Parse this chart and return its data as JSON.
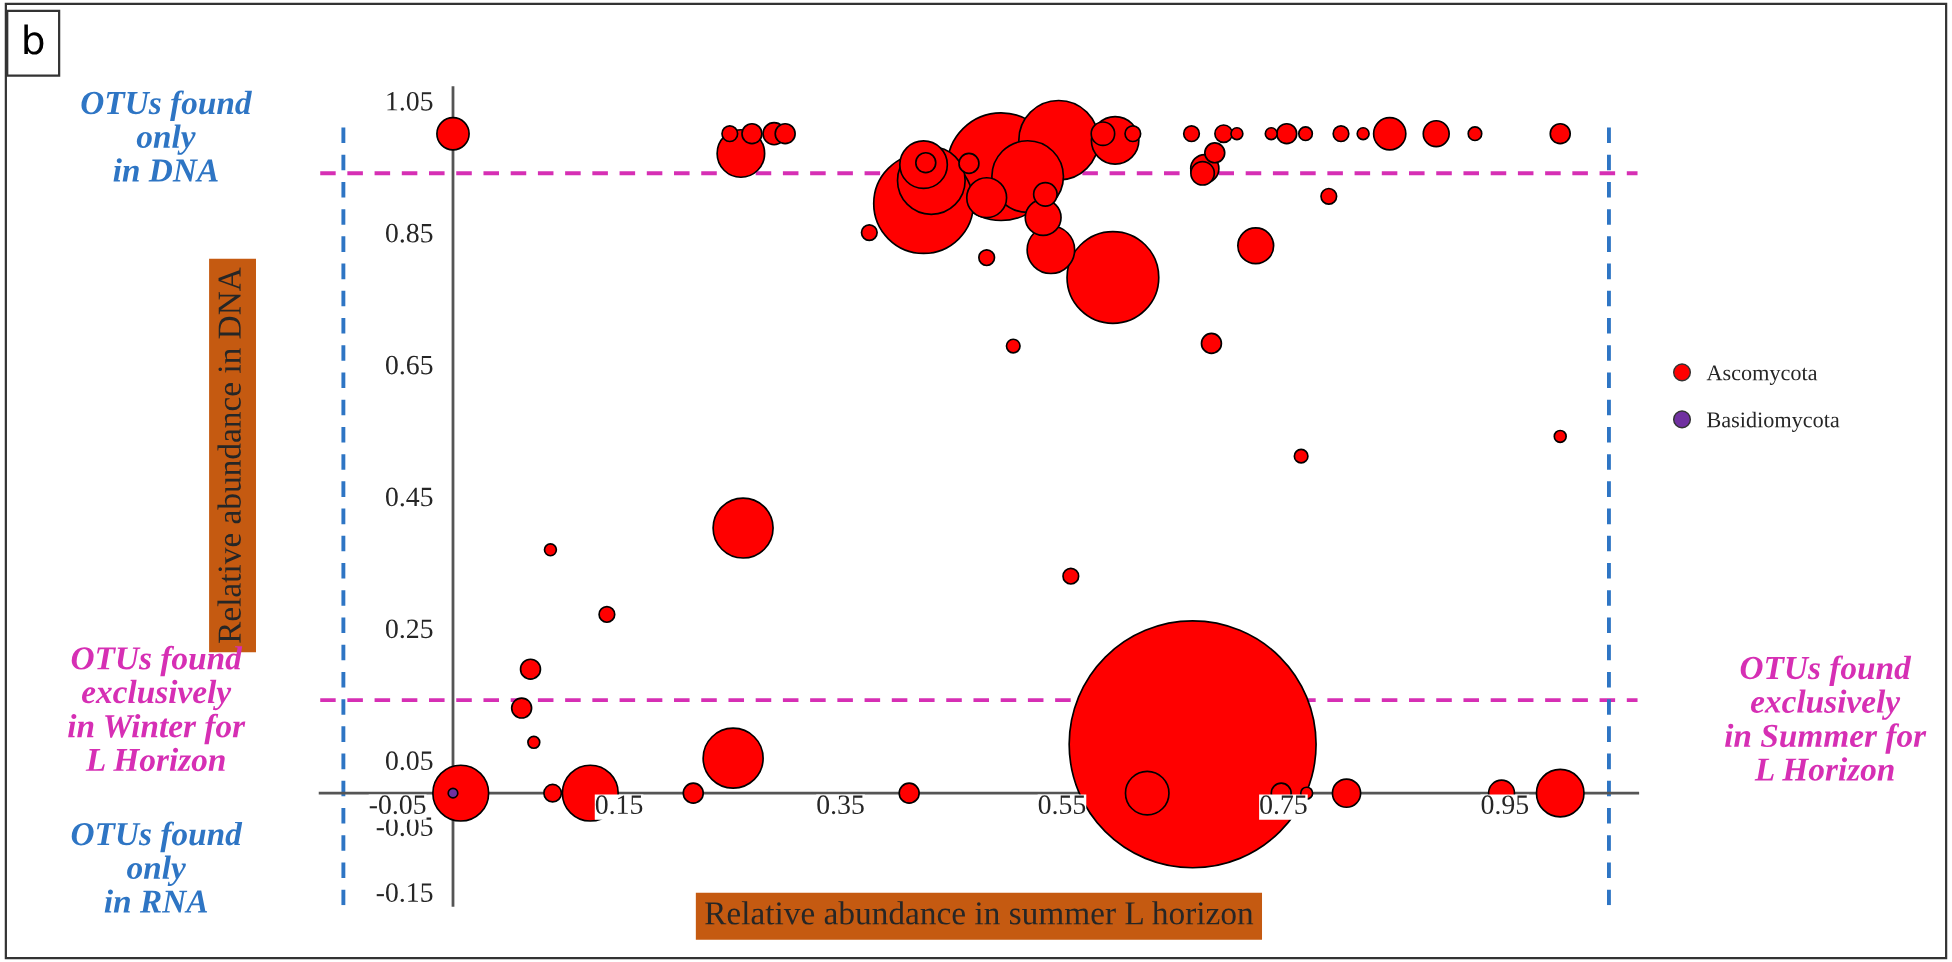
{
  "chart_data": {
    "type": "bubble",
    "xlabel": "Relative abundance in summer L horizon",
    "ylabel": "Relative abundance in DNA",
    "annotations": [
      "b",
      "OTUs found\nonly\nin DNA",
      "OTUs found\nexclusively\nin Winter for\nL Horizon",
      "OTUs found\nonly\nin RNA",
      "OTUs found\nexclusively\nin Summer for\nL Horizon"
    ],
    "xlim": [
      -0.12,
      1.07
    ],
    "ylim": [
      -0.17,
      1.07
    ],
    "xticks": [
      -0.05,
      0.15,
      0.35,
      0.55,
      0.75,
      0.95
    ],
    "yticks": [
      -0.15,
      -0.05,
      0.05,
      0.25,
      0.45,
      0.65,
      0.85,
      1.05
    ],
    "grid": false,
    "legend": "right",
    "marker": "circle",
    "ref_lines": [
      {
        "axis": "y",
        "value": 0.94,
        "color": "#d62fb4",
        "line_style": "dashed"
      },
      {
        "axis": "y",
        "value": 0.141,
        "color": "#d62fb4",
        "line_style": "dashed"
      },
      {
        "axis": "x",
        "value": -0.099,
        "color": "#2e75c4",
        "line_style": "dashed"
      },
      {
        "axis": "x",
        "value": 1.044,
        "color": "#2e75c4",
        "line_style": "dashed"
      }
    ],
    "series": [
      {
        "name": "Ascomycota",
        "color": "#ff0000",
        "x": [
          0.668,
          0.495,
          0.425,
          0.596,
          0.547,
          0.519,
          0.432,
          0.262,
          0.253,
          0.007,
          0.124,
          0.425,
          0.26,
          0.598,
          1.0,
          0.627,
          0.482,
          0.54,
          0.533,
          0.725,
          0.846,
          0.0,
          0.807,
          0.679,
          0.888,
          0.947,
          0.587,
          0.535,
          0.677,
          0.29,
          0.27,
          0.3,
          0.466,
          0.427,
          0.688,
          0.07,
          0.062,
          0.412,
          0.217,
          0.748,
          0.753,
          0.685,
          1.0,
          0.696,
          0.09,
          0.25,
          0.614,
          0.667,
          0.802,
          0.376,
          0.482,
          0.791,
          0.558,
          0.139,
          0.923,
          0.506,
          0.766,
          0.77,
          0.073,
          0.088,
          1.0,
          0.708,
          0.739,
          0.822,
          0.771
        ],
        "values": [
          0.074,
          0.95,
          0.894,
          0.782,
          0.99,
          0.935,
          0.929,
          0.402,
          0.053,
          0,
          0,
          0.953,
          0.97,
          0.99,
          0,
          0,
          0.903,
          0.824,
          0.873,
          0.83,
          1.0,
          1.0,
          0,
          0.947,
          1.0,
          0,
          1.0,
          0.908,
          0.94,
          1.0,
          1.0,
          1.0,
          0.955,
          0.956,
          0.971,
          0.188,
          0.129,
          0,
          0,
          0,
          1.0,
          0.682,
          1.0,
          1.0,
          0,
          1.0,
          1.0,
          1.0,
          1.0,
          0.85,
          0.812,
          0.905,
          0.329,
          0.271,
          1.0,
          0.678,
          0.511,
          1.0,
          0.077,
          0.369,
          0.541,
          1.0,
          1.0,
          1.0,
          0
        ],
        "sizes": [
          1,
          0.19,
          0.163,
          0.138,
          0.104,
          0.084,
          0.075,
          0.059,
          0.059,
          0.051,
          0.051,
          0.037,
          0.037,
          0.037,
          0.037,
          0.031,
          0.026,
          0.037,
          0.021,
          0.021,
          0.017,
          0.017,
          0.013,
          0.013,
          0.011,
          0.011,
          0.009,
          0.009,
          0.009,
          0.008,
          0.0065,
          0.0065,
          0.0065,
          0.0065,
          0.0065,
          0.0065,
          0.0065,
          0.0065,
          0.0065,
          0.0065,
          0.0065,
          0.0065,
          0.0065,
          0.005,
          0.005,
          0.004,
          0.004,
          0.004,
          0.004,
          0.004,
          0.004,
          0.004,
          0.004,
          0.004,
          0.003,
          0.003,
          0.003,
          0.003,
          0.0023,
          0.0023,
          0.0023,
          0.0023,
          0.0023,
          0.0023,
          0.0023
        ]
      },
      {
        "name": "Basidiomycota",
        "color": "#7030a0",
        "x": [
          0.0
        ],
        "values": [
          0.0
        ],
        "sizes": [
          0.0015
        ]
      }
    ]
  }
}
